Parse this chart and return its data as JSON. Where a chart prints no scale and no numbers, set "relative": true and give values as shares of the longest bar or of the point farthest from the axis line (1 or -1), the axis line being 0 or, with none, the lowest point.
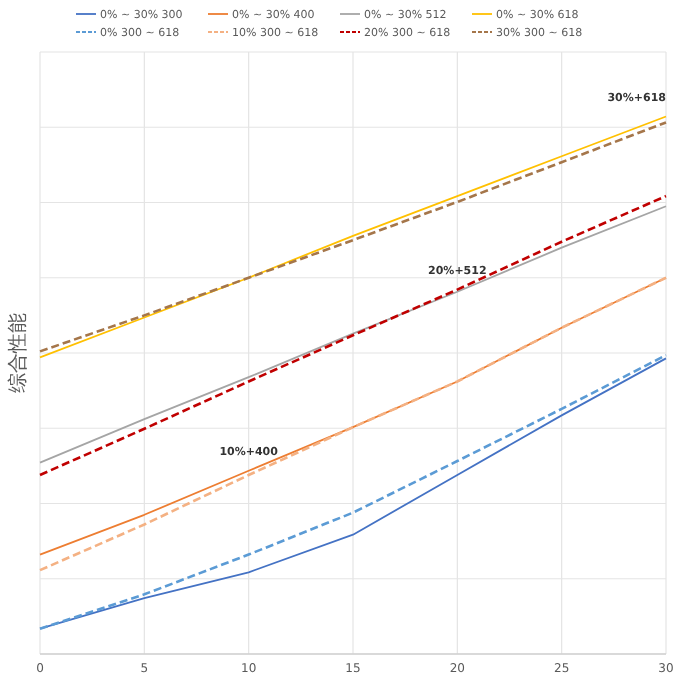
{
  "chart_data": {
    "type": "line",
    "relative": true,
    "ylabel": "综合性能",
    "x": [
      0,
      5,
      10,
      15,
      20,
      25,
      30
    ],
    "xlim": [
      0,
      30
    ],
    "xticks": [
      0,
      5,
      10,
      15,
      20,
      25,
      30
    ],
    "grid": true,
    "legend": "top",
    "marker": "none",
    "series": [
      {
        "name": "0% ~ 30% 300",
        "color": "#4472c4",
        "line_style": "solid",
        "values": [
          0.047,
          0.104,
          0.152,
          0.222,
          0.333,
          0.444,
          0.55
        ]
      },
      {
        "name": "0% ~ 30% 400",
        "color": "#ed7d31",
        "line_style": "solid",
        "values": [
          0.185,
          0.259,
          0.341,
          0.422,
          0.507,
          0.607,
          0.7
        ]
      },
      {
        "name": "0% ~ 30% 512",
        "color": "#a5a5a5",
        "line_style": "solid",
        "values": [
          0.356,
          0.437,
          0.515,
          0.596,
          0.674,
          0.756,
          0.833
        ]
      },
      {
        "name": "0% ~ 30% 618",
        "color": "#ffc000",
        "line_style": "solid",
        "values": [
          0.552,
          0.626,
          0.7,
          0.778,
          0.852,
          0.926,
          1.0
        ]
      },
      {
        "name": "0% 300 ~ 618",
        "color": "#5b9bd5",
        "line_style": "dashed",
        "values": [
          0.047,
          0.111,
          0.185,
          0.263,
          0.359,
          0.456,
          0.556
        ]
      },
      {
        "name": "10% 300 ~ 618",
        "color": "#f4b183",
        "line_style": "dashed",
        "values": [
          0.156,
          0.241,
          0.333,
          0.422,
          0.507,
          0.607,
          0.7
        ]
      },
      {
        "name": "20% 300 ~ 618",
        "color": "#c00000",
        "line_style": "dashed",
        "values": [
          0.333,
          0.419,
          0.507,
          0.593,
          0.678,
          0.767,
          0.852
        ]
      },
      {
        "name": "30% 300 ~ 618",
        "color": "#a5764a",
        "line_style": "dashed",
        "values": [
          0.563,
          0.63,
          0.7,
          0.77,
          0.841,
          0.915,
          0.989
        ]
      }
    ],
    "annotations": [
      {
        "text": "30%+618",
        "x": 30,
        "y": 1.0
      },
      {
        "text": "20%+512",
        "x": 20,
        "y": 0.678
      },
      {
        "text": "10%+400",
        "x": 10,
        "y": 0.341
      }
    ]
  }
}
